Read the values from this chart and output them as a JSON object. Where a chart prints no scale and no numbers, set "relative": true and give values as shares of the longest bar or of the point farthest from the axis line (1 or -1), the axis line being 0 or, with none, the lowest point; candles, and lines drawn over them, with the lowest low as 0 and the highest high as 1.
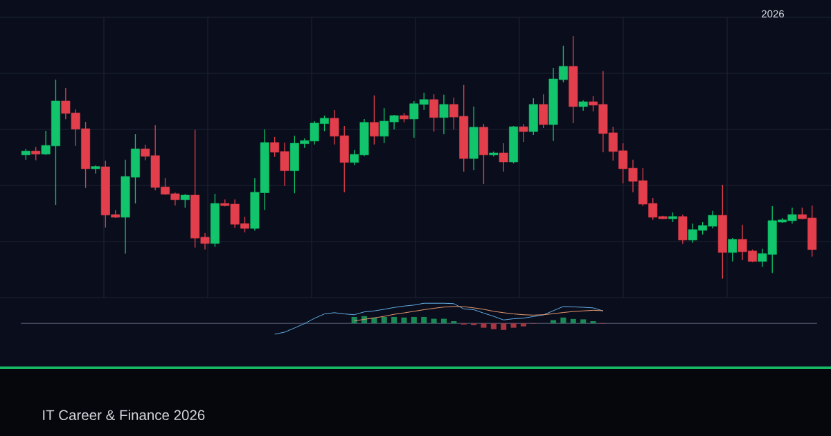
{
  "chart_data": [
    {
      "type": "candlestick",
      "relative": true,
      "grid": true,
      "tick_labels": false,
      "categories": [
        null,
        null,
        null,
        null,
        null,
        null,
        null,
        null,
        null,
        null,
        null,
        null,
        null,
        null,
        null,
        null,
        null,
        null,
        null,
        null,
        null,
        null,
        null,
        null,
        null,
        null,
        null,
        null,
        null,
        null,
        null,
        null,
        null,
        null,
        null,
        null,
        null,
        null,
        null,
        null,
        null,
        null,
        null,
        null,
        null,
        null,
        null,
        null,
        null,
        null,
        null,
        null,
        null,
        null,
        null,
        null,
        null,
        null,
        null,
        null,
        null,
        null,
        null,
        null,
        null,
        null,
        null,
        null,
        null,
        null,
        null,
        null,
        null,
        null,
        null,
        null,
        null,
        null,
        null,
        null
      ],
      "ohlc": [
        [
          0.51,
          0.535,
          0.49,
          0.526
        ],
        [
          0.526,
          0.543,
          0.488,
          0.513
        ],
        [
          0.513,
          0.609,
          0.51,
          0.549
        ],
        [
          0.547,
          0.82,
          0.304,
          0.732
        ],
        [
          0.732,
          0.786,
          0.657,
          0.681
        ],
        [
          0.683,
          0.698,
          0.547,
          0.616
        ],
        [
          0.618,
          0.646,
          0.374,
          0.453
        ],
        [
          0.453,
          0.467,
          0.433,
          0.462
        ],
        [
          0.461,
          0.486,
          0.211,
          0.262
        ],
        [
          0.264,
          0.283,
          0.25,
          0.253
        ],
        [
          0.253,
          0.49,
          0.103,
          0.421
        ],
        [
          0.418,
          0.595,
          0.31,
          0.535
        ],
        [
          0.535,
          0.552,
          0.488,
          0.504
        ],
        [
          0.507,
          0.632,
          0.364,
          0.376
        ],
        [
          0.378,
          0.415,
          0.345,
          0.348
        ],
        [
          0.35,
          0.355,
          0.302,
          0.325
        ],
        [
          0.325,
          0.348,
          0.293,
          0.344
        ],
        [
          0.344,
          0.613,
          0.128,
          0.167
        ],
        [
          0.171,
          0.188,
          0.12,
          0.145
        ],
        [
          0.145,
          0.35,
          0.131,
          0.31
        ],
        [
          0.31,
          0.326,
          0.298,
          0.301
        ],
        [
          0.307,
          0.326,
          0.209,
          0.224
        ],
        [
          0.227,
          0.255,
          0.191,
          0.207
        ],
        [
          0.207,
          0.415,
          0.198,
          0.356
        ],
        [
          0.354,
          0.615,
          0.283,
          0.561
        ],
        [
          0.561,
          0.584,
          0.502,
          0.521
        ],
        [
          0.524,
          0.561,
          0.382,
          0.445
        ],
        [
          0.445,
          0.589,
          0.352,
          0.558
        ],
        [
          0.556,
          0.578,
          0.539,
          0.569
        ],
        [
          0.567,
          0.649,
          0.553,
          0.641
        ],
        [
          0.639,
          0.672,
          0.608,
          0.661
        ],
        [
          0.661,
          0.695,
          0.553,
          0.587
        ],
        [
          0.589,
          0.629,
          0.356,
          0.479
        ],
        [
          0.479,
          0.53,
          0.468,
          0.512
        ],
        [
          0.51,
          0.658,
          0.505,
          0.644
        ],
        [
          0.644,
          0.755,
          0.553,
          0.587
        ],
        [
          0.587,
          0.703,
          0.559,
          0.649
        ],
        [
          0.646,
          0.675,
          0.615,
          0.672
        ],
        [
          0.672,
          0.683,
          0.644,
          0.658
        ],
        [
          0.658,
          0.732,
          0.581,
          0.721
        ],
        [
          0.718,
          0.766,
          0.695,
          0.738
        ],
        [
          0.738,
          0.76,
          0.606,
          0.664
        ],
        [
          0.664,
          0.758,
          0.595,
          0.718
        ],
        [
          0.718,
          0.746,
          0.615,
          0.666
        ],
        [
          0.669,
          0.798,
          0.441,
          0.495
        ],
        [
          0.495,
          0.709,
          0.447,
          0.624
        ],
        [
          0.624,
          0.638,
          0.39,
          0.51
        ],
        [
          0.51,
          0.524,
          0.504,
          0.518
        ],
        [
          0.518,
          0.558,
          0.441,
          0.481
        ],
        [
          0.481,
          0.629,
          0.475,
          0.626
        ],
        [
          0.626,
          0.638,
          0.564,
          0.606
        ],
        [
          0.606,
          0.743,
          0.592,
          0.718
        ],
        [
          0.718,
          0.76,
          0.621,
          0.635
        ],
        [
          0.635,
          0.869,
          0.567,
          0.823
        ],
        [
          0.82,
          0.96,
          0.809,
          0.875
        ],
        [
          0.875,
          1,
          0.641,
          0.709
        ],
        [
          0.709,
          0.735,
          0.692,
          0.729
        ],
        [
          0.729,
          0.752,
          0.689,
          0.715
        ],
        [
          0.718,
          0.855,
          0.521,
          0.598
        ],
        [
          0.601,
          0.626,
          0.487,
          0.524
        ],
        [
          0.527,
          0.558,
          0.393,
          0.453
        ],
        [
          0.455,
          0.49,
          0.356,
          0.401
        ],
        [
          0.404,
          0.455,
          0.299,
          0.307
        ],
        [
          0.31,
          0.333,
          0.242,
          0.253
        ],
        [
          0.256,
          0.259,
          0.246,
          0.247
        ],
        [
          0.247,
          0.273,
          0.233,
          0.256
        ],
        [
          0.256,
          0.264,
          0.143,
          0.159
        ],
        [
          0.159,
          0.227,
          0.148,
          0.202
        ],
        [
          0.199,
          0.233,
          0.182,
          0.219
        ],
        [
          0.216,
          0.279,
          0.207,
          0.261
        ],
        [
          0.261,
          0.387,
          0,
          0.108
        ],
        [
          0.108,
          0.167,
          0.071,
          0.162
        ],
        [
          0.162,
          0.222,
          0.077,
          0.111
        ],
        [
          0.114,
          0.12,
          0.068,
          0.071
        ],
        [
          0.071,
          0.123,
          0.048,
          0.103
        ],
        [
          0.1,
          0.299,
          0.023,
          0.239
        ],
        [
          0.233,
          0.25,
          0.23,
          0.242
        ],
        [
          0.239,
          0.293,
          0.227,
          0.264
        ],
        [
          0.264,
          0.293,
          0.244,
          0.247
        ],
        [
          0.25,
          0.301,
          0.091,
          0.12
        ]
      ],
      "colors": [
        "#12c46b",
        "#e23e4b",
        "#12c46b",
        "#12c46b",
        "#e23e4b",
        "#e23e4b",
        "#e23e4b",
        "#12c46b",
        "#e23e4b",
        "#e23e4b",
        "#12c46b",
        "#12c46b",
        "#e23e4b",
        "#e23e4b",
        "#e23e4b",
        "#e23e4b",
        "#12c46b",
        "#e23e4b",
        "#e23e4b",
        "#12c46b",
        "#e23e4b",
        "#e23e4b",
        "#e23e4b",
        "#12c46b",
        "#12c46b",
        "#e23e4b",
        "#e23e4b",
        "#12c46b",
        "#12c46b",
        "#12c46b",
        "#12c46b",
        "#e23e4b",
        "#e23e4b",
        "#12c46b",
        "#12c46b",
        "#e23e4b",
        "#12c46b",
        "#12c46b",
        "#e23e4b",
        "#12c46b",
        "#12c46b",
        "#e23e4b",
        "#12c46b",
        "#e23e4b",
        "#e23e4b",
        "#12c46b",
        "#e23e4b",
        "#12c46b",
        "#e23e4b",
        "#12c46b",
        "#e23e4b",
        "#12c46b",
        "#e23e4b",
        "#12c46b",
        "#12c46b",
        "#e23e4b",
        "#12c46b",
        "#e23e4b",
        "#e23e4b",
        "#e23e4b",
        "#e23e4b",
        "#e23e4b",
        "#e23e4b",
        "#e23e4b",
        "#e23e4b",
        "#12c46b",
        "#e23e4b",
        "#12c46b",
        "#12c46b",
        "#12c46b",
        "#e23e4b",
        "#12c46b",
        "#e23e4b",
        "#e23e4b",
        "#12c46b",
        "#12c46b",
        "#12c46b",
        "#12c46b",
        "#e23e4b",
        "#e23e4b"
      ],
      "annotations": [
        "2026",
        "IT Career & Finance 2026"
      ]
    },
    {
      "type": "line",
      "relative": true,
      "tick_labels": false,
      "categories": [
        null,
        null,
        null,
        null,
        null,
        null,
        null,
        null,
        null,
        null,
        null,
        null,
        null,
        null,
        null,
        null,
        null,
        null,
        null,
        null,
        null,
        null,
        null,
        null,
        null,
        null,
        null,
        null,
        null,
        null,
        null,
        null,
        null,
        null,
        null,
        null,
        null,
        null,
        null,
        null,
        null,
        null,
        null,
        null,
        null,
        null,
        null,
        null,
        null,
        null,
        null,
        null,
        null,
        null,
        null,
        null,
        null,
        null,
        null,
        null,
        null,
        null,
        null,
        null,
        null,
        null,
        null,
        null,
        null,
        null,
        null,
        null,
        null,
        null,
        null,
        null,
        null,
        null,
        null,
        null
      ],
      "series": [
        {
          "type": "bar",
          "values": [
            null,
            null,
            null,
            null,
            null,
            null,
            null,
            null,
            null,
            null,
            null,
            null,
            null,
            null,
            null,
            null,
            null,
            null,
            null,
            null,
            null,
            null,
            null,
            null,
            null,
            null,
            null,
            null,
            null,
            null,
            null,
            null,
            null,
            0.32,
            0.36,
            0.29,
            0.32,
            0.32,
            0.29,
            0.32,
            0.32,
            0.23,
            0.23,
            0.11,
            -0.06,
            -0.09,
            -0.22,
            -0.29,
            -0.33,
            -0.22,
            -0.15,
            -0.02,
            null,
            0.16,
            0.29,
            0.22,
            0.2,
            0.11,
            -0.02,
            null,
            null,
            null,
            null,
            null,
            null,
            null,
            null,
            null,
            null,
            null,
            null,
            null,
            null,
            null,
            null,
            null,
            null,
            null,
            null,
            null
          ],
          "colors": [
            null,
            null,
            null,
            null,
            null,
            null,
            null,
            null,
            null,
            null,
            null,
            null,
            null,
            null,
            null,
            null,
            null,
            null,
            null,
            null,
            null,
            null,
            null,
            null,
            null,
            null,
            null,
            null,
            null,
            null,
            null,
            null,
            null,
            "#1a8a56",
            "#1a8a56",
            "#1a8a56",
            "#1a8a56",
            "#1a8a56",
            "#1a8a56",
            "#1a8a56",
            "#1a8a56",
            "#1a8a56",
            "#1a8a56",
            "#1a8a56",
            "#ab3441",
            "#ab3441",
            "#ab3441",
            "#ab3441",
            "#ab3441",
            "#ab3441",
            "#ab3441",
            "#ab3441",
            null,
            "#1a8a56",
            "#1a8a56",
            "#1a8a56",
            "#1a8a56",
            "#1a8a56",
            "#ab3441",
            null,
            null,
            null,
            null,
            null,
            null,
            null,
            null,
            null,
            null,
            null,
            null,
            null,
            null,
            null,
            null,
            null,
            null,
            null,
            null,
            null
          ]
        },
        {
          "color": "#62aee6",
          "values": [
            null,
            null,
            null,
            null,
            null,
            null,
            null,
            null,
            null,
            null,
            null,
            null,
            null,
            null,
            null,
            null,
            null,
            null,
            null,
            null,
            null,
            null,
            null,
            null,
            null,
            -0.54,
            -0.44,
            -0.23,
            -0.01,
            0.25,
            0.47,
            0.53,
            0.47,
            0.43,
            0.57,
            0.62,
            0.7,
            0.79,
            0.86,
            0.91,
            1,
            1,
            1,
            0.98,
            0.72,
            0.68,
            0.51,
            0.35,
            0.17,
            0.23,
            0.26,
            0.34,
            0.42,
            0.63,
            0.84,
            0.82,
            0.8,
            0.77,
            0.62,
            null,
            null,
            null,
            null,
            null,
            null,
            null,
            null,
            null,
            null,
            null,
            null,
            null,
            null,
            null,
            null,
            null,
            null,
            null,
            null,
            null
          ]
        },
        {
          "color": "#e8996f",
          "values": [
            null,
            null,
            null,
            null,
            null,
            null,
            null,
            null,
            null,
            null,
            null,
            null,
            null,
            null,
            null,
            null,
            null,
            null,
            null,
            null,
            null,
            null,
            null,
            null,
            null,
            null,
            null,
            null,
            null,
            null,
            null,
            null,
            null,
            0.12,
            0.2,
            0.27,
            0.35,
            0.45,
            0.52,
            0.6,
            0.68,
            0.75,
            0.81,
            0.84,
            0.83,
            0.77,
            0.7,
            0.6,
            0.53,
            0.47,
            0.43,
            0.41,
            0.43,
            0.48,
            0.54,
            0.59,
            0.62,
            0.65,
            0.63,
            null,
            null,
            null,
            null,
            null,
            null,
            null,
            null,
            null,
            null,
            null,
            null,
            null,
            null,
            null,
            null,
            null,
            null,
            null,
            null,
            null
          ]
        }
      ]
    }
  ]
}
